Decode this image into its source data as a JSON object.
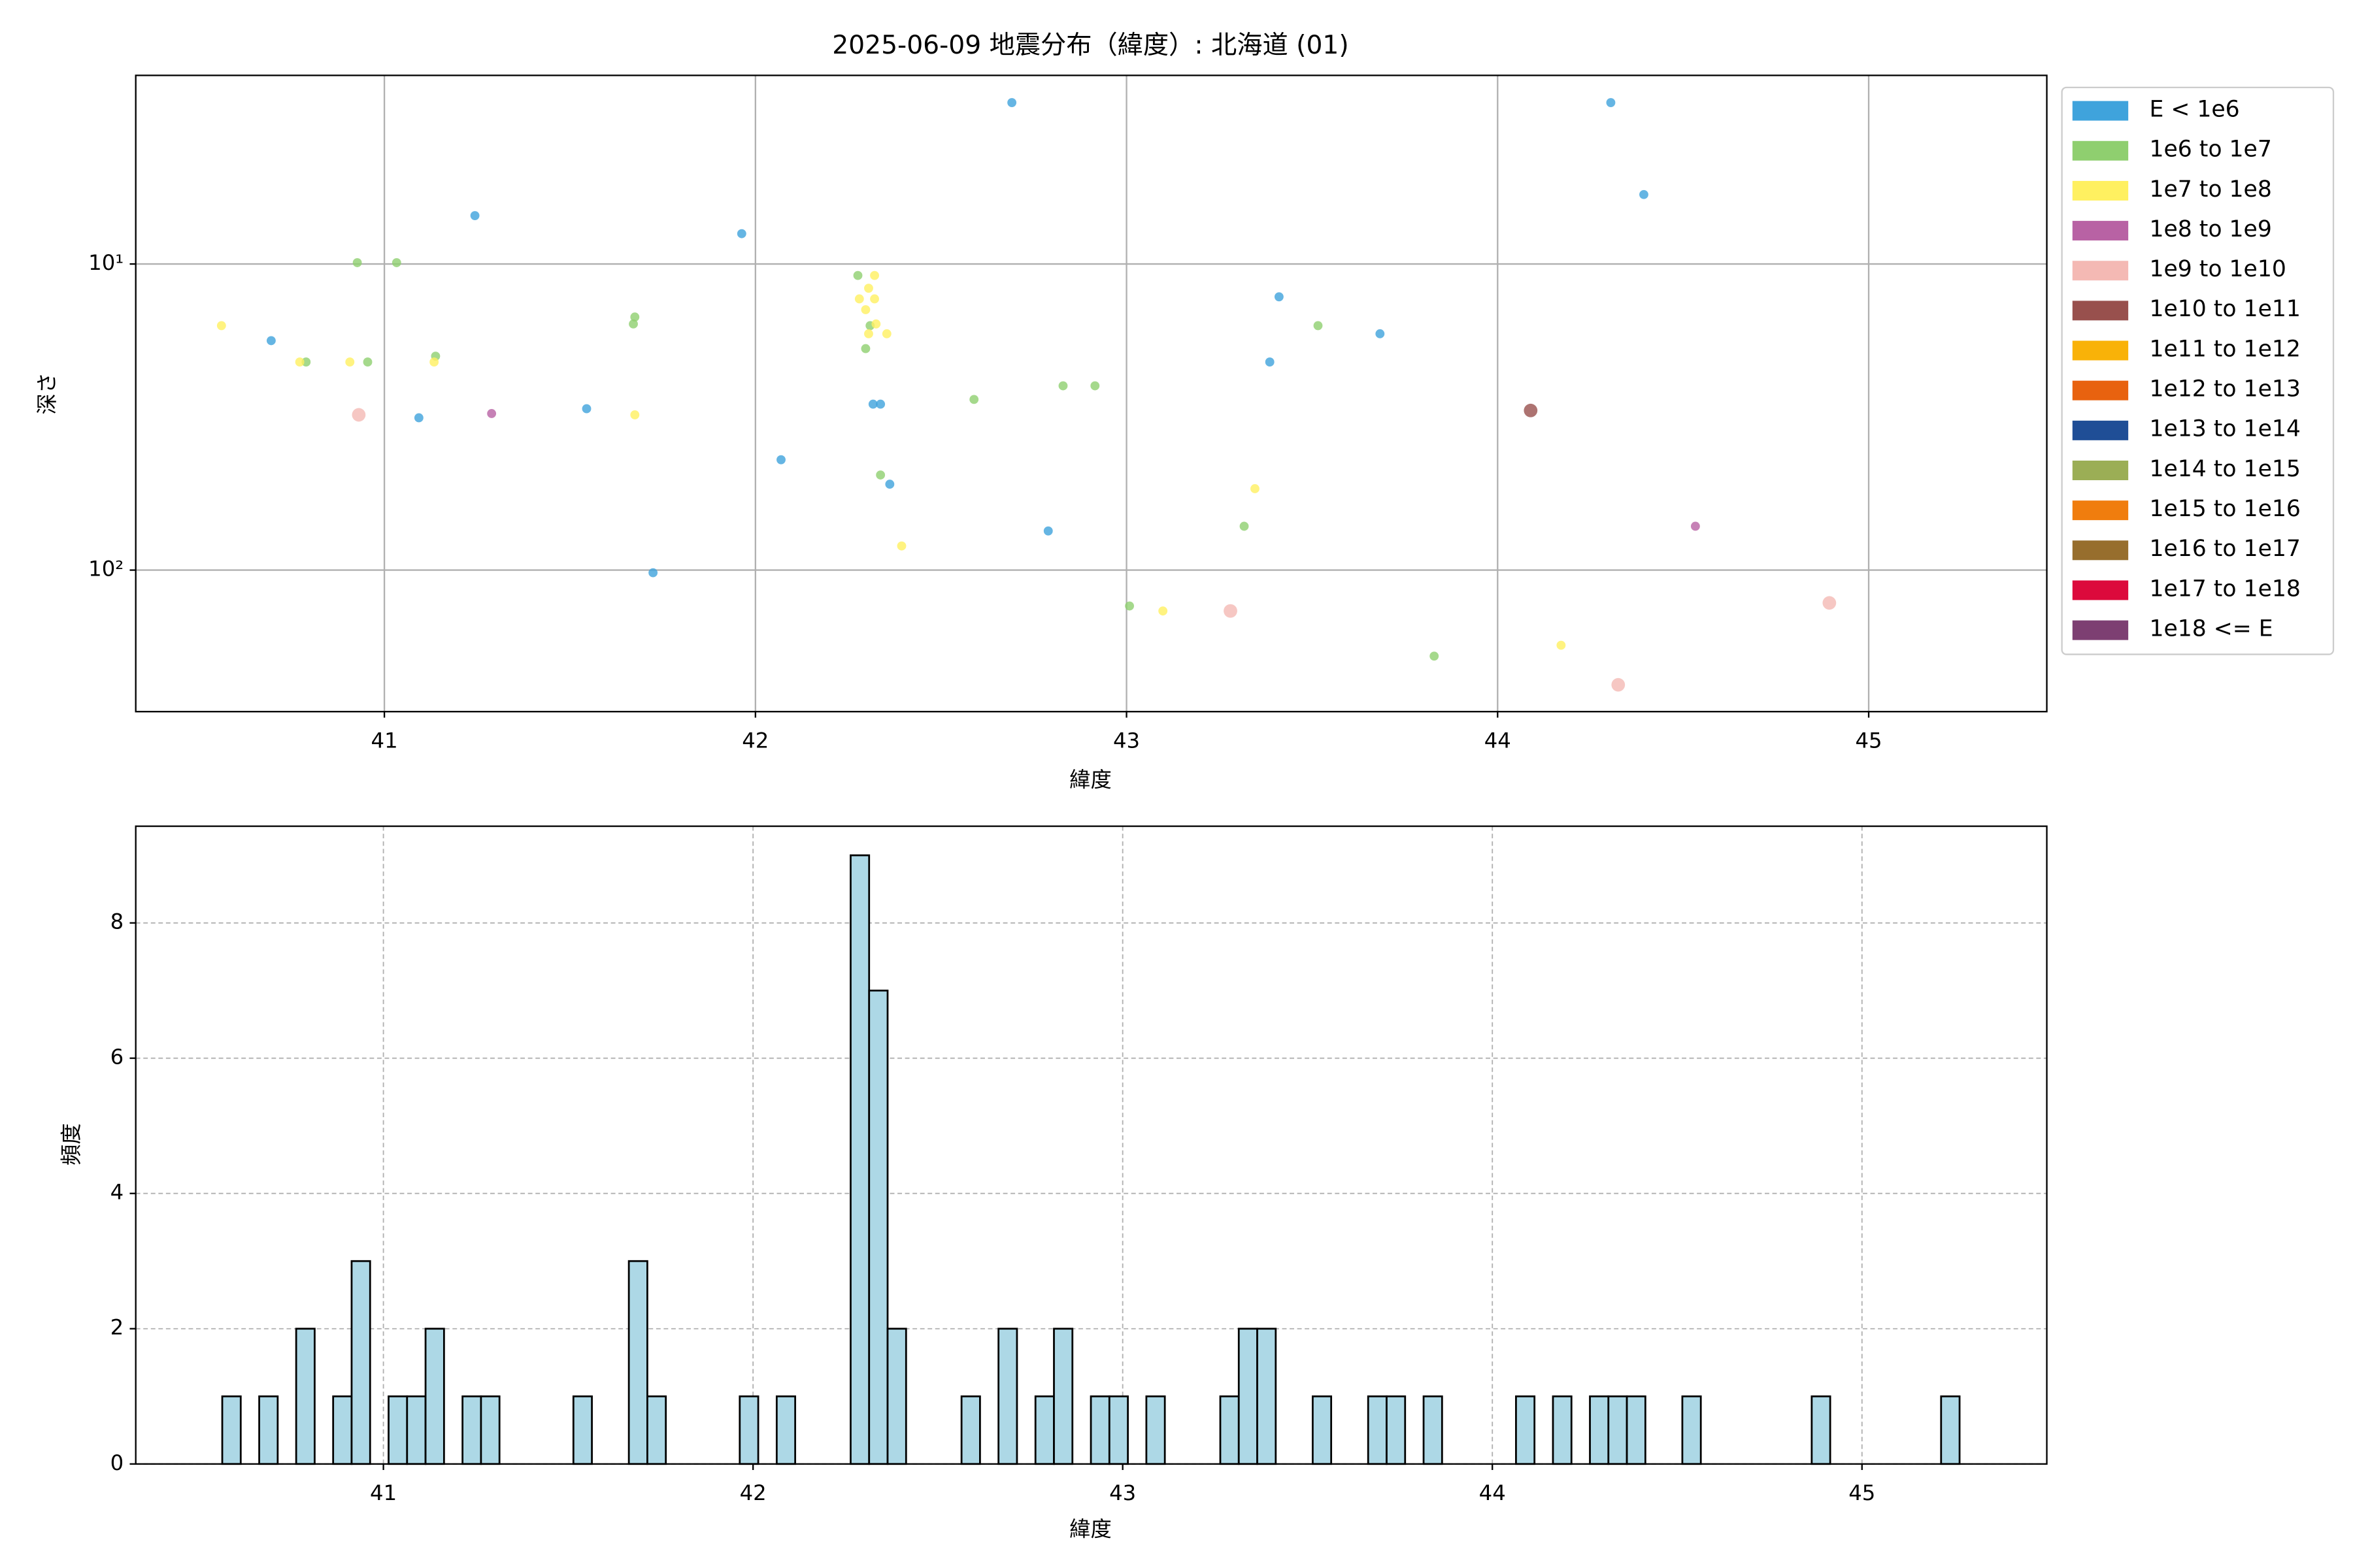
{
  "chart_data": [
    {
      "type": "scatter",
      "title": "2025-06-09 地震分布（緯度）: 北海道 (01)",
      "xlabel": "緯度",
      "ylabel": "深さ",
      "log_y": true,
      "grid": true,
      "legend": "outside right",
      "xlim": [
        40.33,
        45.48
      ],
      "xticks": [
        41,
        42,
        43,
        44,
        45
      ],
      "ylim": [
        290,
        2.42
      ],
      "yticks": [
        {
          "value": 10,
          "label": "10¹"
        },
        {
          "value": 100,
          "label": "10²"
        }
      ],
      "series": [
        {
          "name": "E < 1e6",
          "color": "#3fa3dc",
          "x": [
            42.691,
            44.305,
            44.394,
            41.244,
            41.963,
            43.411,
            40.695,
            43.683,
            43.386,
            41.093,
            41.545,
            42.317,
            42.337,
            42.069,
            42.362,
            42.789,
            41.724
          ],
          "values": [
            2.97,
            2.97,
            5.93,
            6.95,
            7.96,
            12.8,
            17.8,
            16.9,
            20.9,
            31.8,
            29.7,
            28.7,
            28.7,
            43.6,
            52.4,
            74.5,
            102
          ]
        },
        {
          "name": "1e6 to 1e7",
          "color": "#8fcf6f",
          "x": [
            40.927,
            41.033,
            41.675,
            41.671,
            41.138,
            40.789,
            40.955,
            42.276,
            42.309,
            42.297,
            43.516,
            42.589,
            42.829,
            42.915,
            42.337,
            43.317,
            43.008,
            43.829
          ],
          "values": [
            9.9,
            9.9,
            14.9,
            15.7,
            20.0,
            20.9,
            20.9,
            10.9,
            15.9,
            18.9,
            15.9,
            27.7,
            25.0,
            25.0,
            48.9,
            71.9,
            131,
            191
          ]
        },
        {
          "name": "1e7 to 1e8",
          "color": "#fff060",
          "x": [
            40.561,
            40.772,
            40.907,
            41.134,
            41.675,
            42.321,
            42.305,
            42.28,
            42.321,
            42.297,
            42.325,
            42.354,
            42.305,
            42.394,
            43.346,
            43.098,
            44.171
          ],
          "values": [
            15.9,
            20.9,
            20.9,
            20.9,
            31.1,
            10.9,
            12.0,
            13.0,
            13.0,
            14.1,
            15.7,
            16.9,
            16.9,
            83.4,
            54.2,
            136,
            176
          ]
        },
        {
          "name": "1e8 to 1e9",
          "color": "#b862a4",
          "x": [
            41.289,
            44.533
          ],
          "values": [
            30.8,
            71.9
          ]
        },
        {
          "name": "1e9 to 1e10",
          "color": "#f4b9b4",
          "x": [
            40.931,
            43.28,
            44.894,
            44.325
          ],
          "values": [
            31.1,
            136,
            128,
            237
          ]
        },
        {
          "name": "1e10 to 1e11",
          "color": "#98504d",
          "x": [
            44.089
          ],
          "values": [
            30.1
          ]
        },
        {
          "name": "1e11 to 1e12",
          "color": "#f9b208",
          "x": [],
          "values": []
        },
        {
          "name": "1e12 to 1e13",
          "color": "#e8620f",
          "x": [],
          "values": []
        },
        {
          "name": "1e13 to 1e14",
          "color": "#1f4e96",
          "x": [],
          "values": []
        },
        {
          "name": "1e14 to 1e15",
          "color": "#9bae55",
          "x": [],
          "values": []
        },
        {
          "name": "1e15 to 1e16",
          "color": "#f07d0e",
          "x": [],
          "values": []
        },
        {
          "name": "1e16 to 1e17",
          "color": "#976e2d",
          "x": [],
          "values": []
        },
        {
          "name": "1e17 to 1e18",
          "color": "#dc0a3c",
          "x": [],
          "values": []
        },
        {
          "name": "1e18 <= E",
          "color": "#7d3f72",
          "x": [],
          "values": []
        }
      ]
    },
    {
      "type": "histogram",
      "xlabel": "緯度",
      "ylabel": "頻度",
      "grid": true,
      "color": "#add8e6",
      "edgecolor": "#000000",
      "xlim": [
        40.33,
        45.5
      ],
      "xticks": [
        41,
        42,
        43,
        44,
        45
      ],
      "ylim": [
        0,
        9.43
      ],
      "yticks": [
        0,
        2,
        4,
        6,
        8
      ],
      "bins": [
        40.564,
        40.614,
        40.664,
        40.714,
        40.764,
        40.814,
        40.864,
        40.914,
        40.964,
        41.014,
        41.064,
        41.114,
        41.164,
        41.214,
        41.264,
        41.314,
        41.364,
        41.414,
        41.464,
        41.514,
        41.564,
        41.614,
        41.664,
        41.714,
        41.764,
        41.814,
        41.864,
        41.914,
        41.964,
        42.014,
        42.064,
        42.114,
        42.164,
        42.214,
        42.264,
        42.314,
        42.364,
        42.414,
        42.464,
        42.514,
        42.564,
        42.614,
        42.664,
        42.714,
        42.764,
        42.814,
        42.864,
        42.914,
        42.964,
        43.014,
        43.064,
        43.114,
        43.164,
        43.214,
        43.264,
        43.314,
        43.364,
        43.414,
        43.464,
        43.514,
        43.564,
        43.614,
        43.664,
        43.714,
        43.764,
        43.814,
        43.864,
        43.914,
        43.964,
        44.014,
        44.064,
        44.114,
        44.164,
        44.214,
        44.264,
        44.314,
        44.364,
        44.414,
        44.464,
        44.514,
        44.564,
        44.614,
        44.664,
        44.714,
        44.764,
        44.814,
        44.864,
        44.914,
        44.964,
        45.014,
        45.064,
        45.114,
        45.164,
        45.214,
        45.264
      ],
      "counts": [
        1,
        0,
        1,
        0,
        2,
        0,
        1,
        3,
        0,
        1,
        1,
        2,
        0,
        1,
        1,
        0,
        0,
        0,
        0,
        1,
        0,
        0,
        3,
        1,
        0,
        0,
        0,
        0,
        1,
        0,
        1,
        0,
        0,
        0,
        9,
        7,
        2,
        0,
        0,
        0,
        1,
        0,
        2,
        0,
        1,
        2,
        0,
        1,
        1,
        0,
        1,
        0,
        0,
        0,
        1,
        2,
        2,
        0,
        0,
        1,
        0,
        0,
        1,
        1,
        0,
        1,
        0,
        0,
        0,
        0,
        1,
        0,
        1,
        0,
        1,
        1,
        1,
        0,
        0,
        1,
        0,
        0,
        0,
        0,
        0,
        0,
        1,
        0,
        0,
        0,
        0,
        0,
        0,
        1
      ]
    }
  ]
}
